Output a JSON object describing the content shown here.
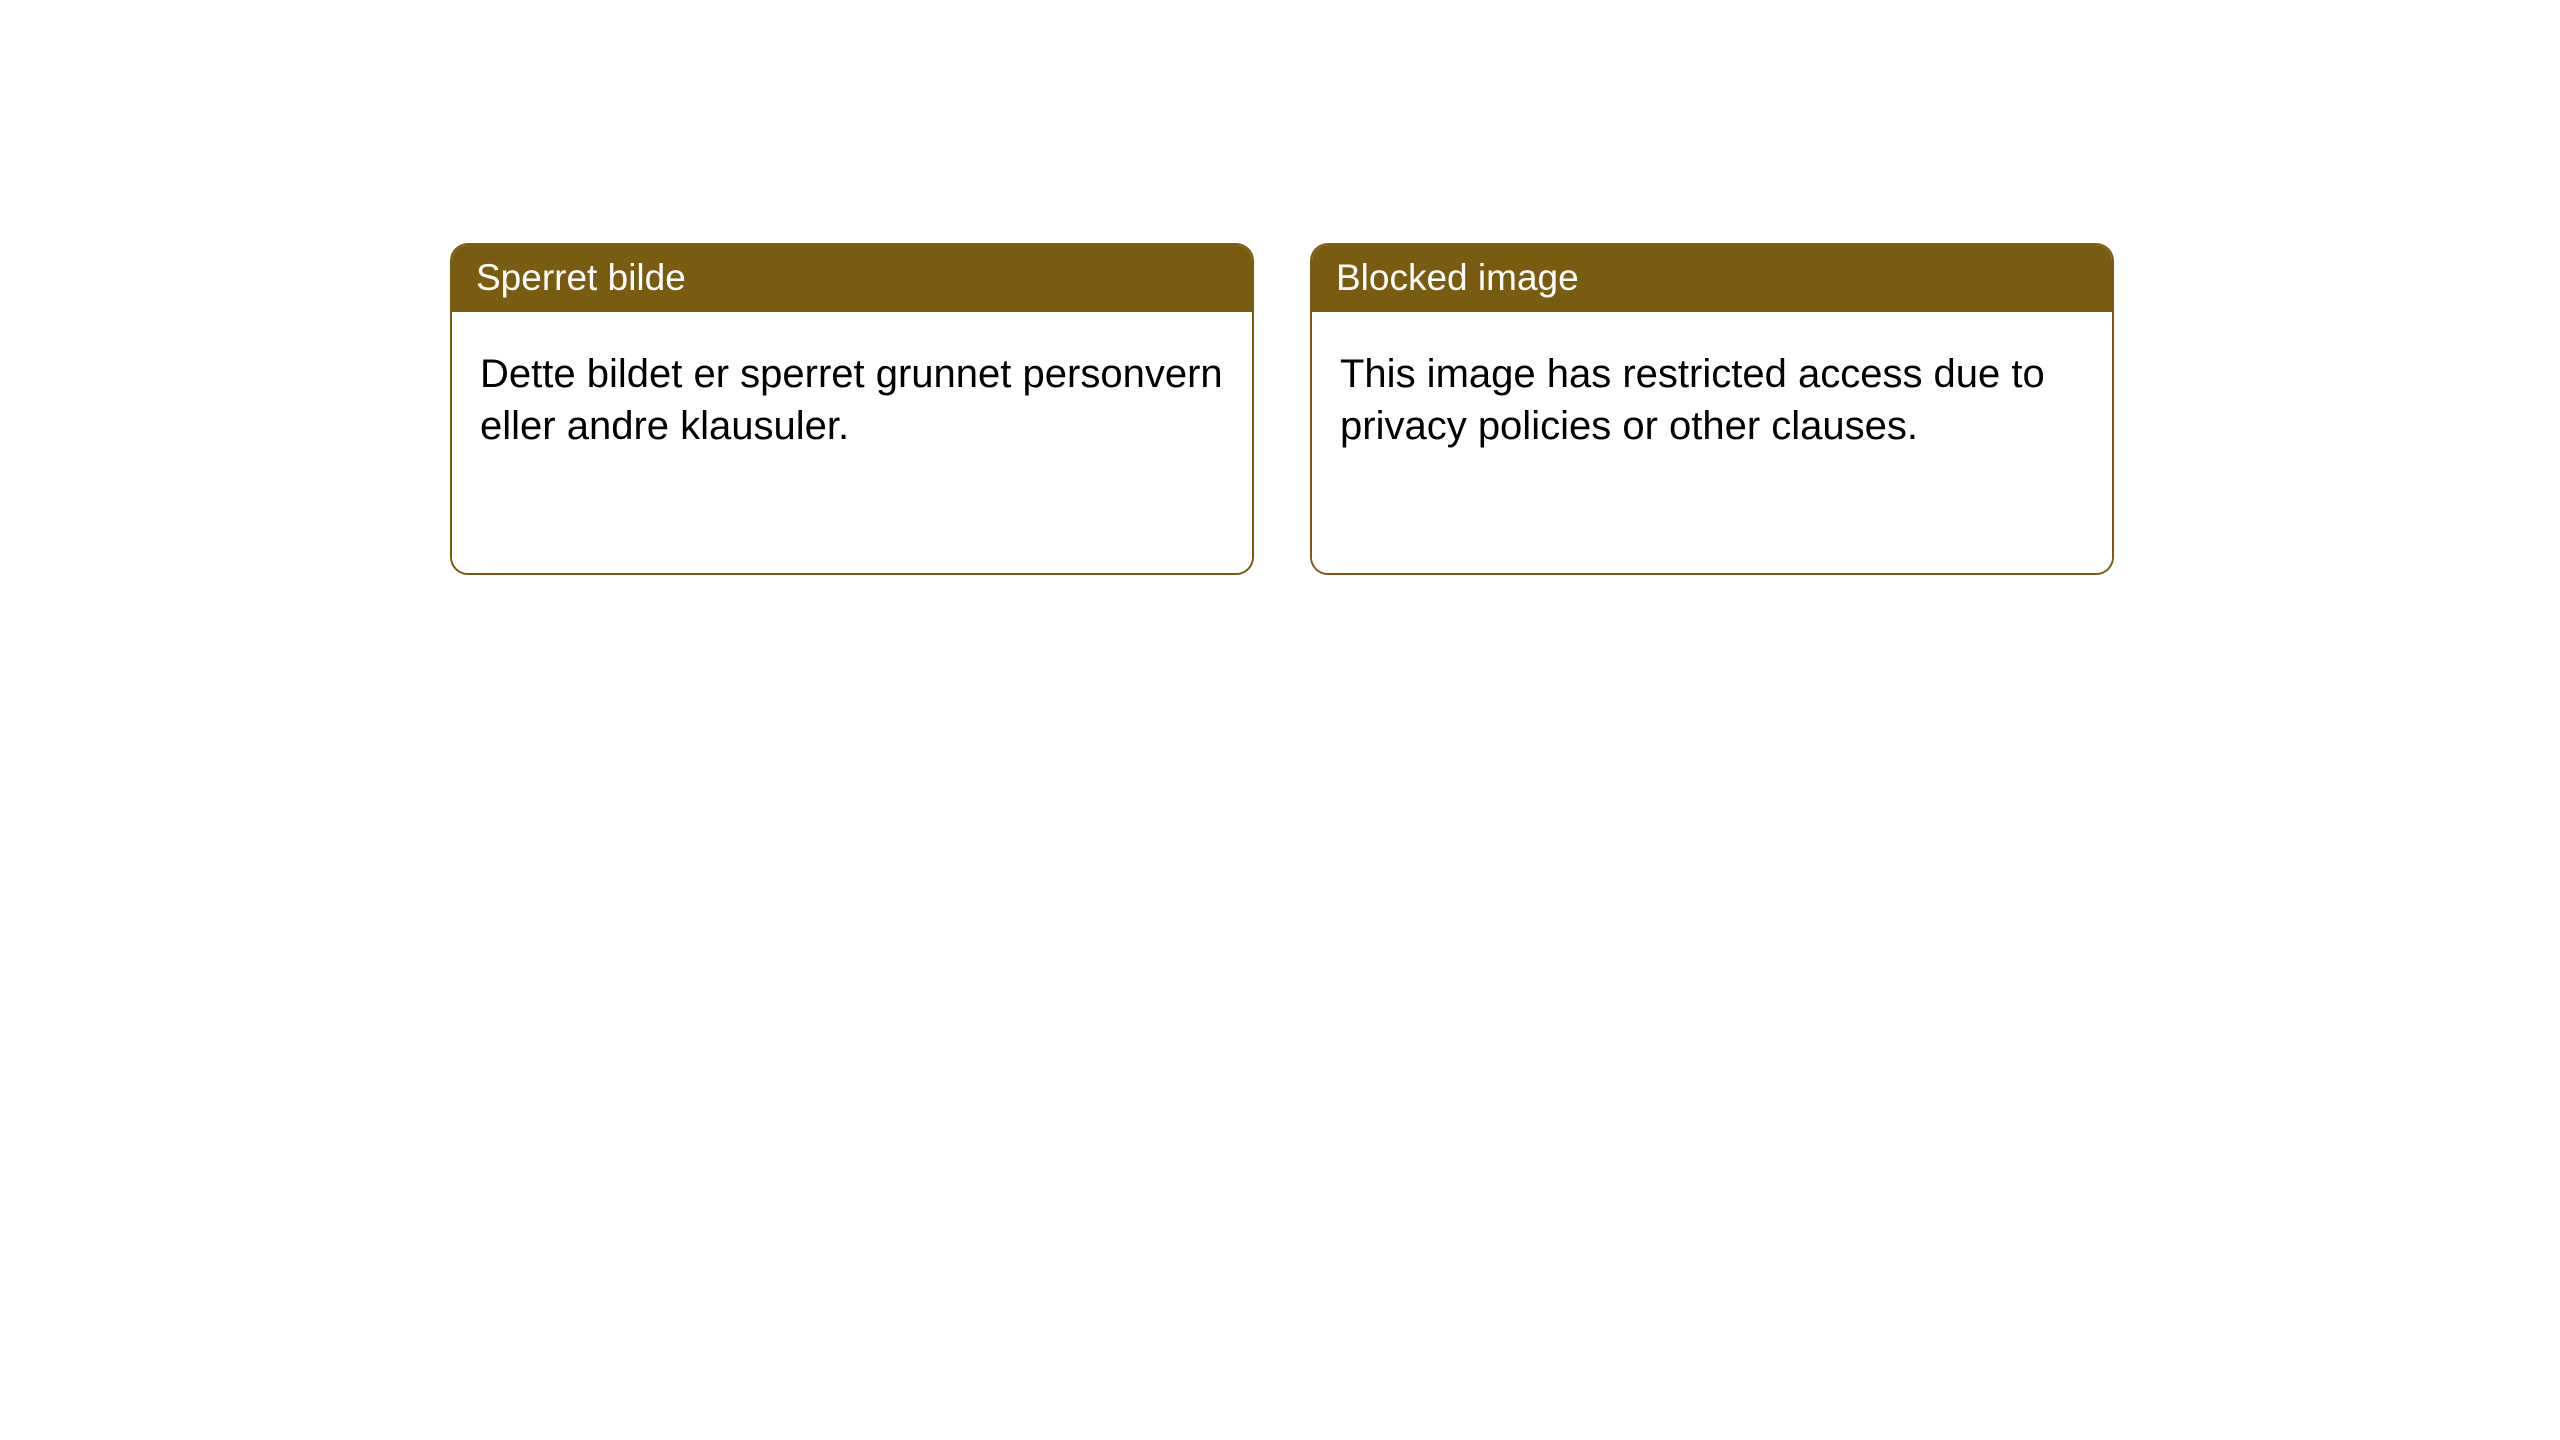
{
  "notices": [
    {
      "title": "Sperret bilde",
      "body": "Dette bildet er sperret grunnet personvern eller andre klausuler."
    },
    {
      "title": "Blocked image",
      "body": "This image has restricted access due to privacy policies or other clauses."
    }
  ],
  "colors": {
    "header_bg": "#7a5c11",
    "header_text": "#ffffff",
    "body_bg": "#ffffff",
    "body_text": "#000000",
    "border": "#7a5c11",
    "page_bg": "#ffffff"
  }
}
